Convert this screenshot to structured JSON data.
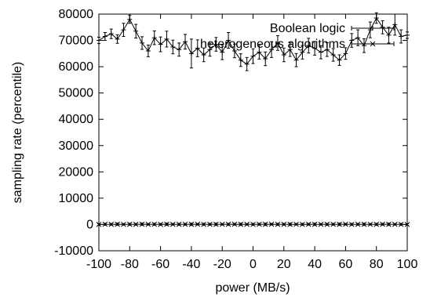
{
  "chart_data": {
    "type": "line",
    "title": "",
    "xlabel": "power (MB/s)",
    "ylabel": "sampling rate (percentile)",
    "xlim": [
      -100,
      100
    ],
    "ylim": [
      -10000,
      80000
    ],
    "xticks": [
      -100,
      -80,
      -60,
      -40,
      -20,
      0,
      20,
      40,
      60,
      80,
      100
    ],
    "yticks": [
      -10000,
      0,
      10000,
      20000,
      30000,
      40000,
      50000,
      60000,
      70000,
      80000
    ],
    "grid": false,
    "legend": "top-right",
    "series": [
      {
        "name": "Boolean logic",
        "color": "#000000",
        "style": "line-with-errorbars",
        "x": [
          -100,
          -96,
          -92,
          -88,
          -84,
          -80,
          -76,
          -72,
          -68,
          -64,
          -60,
          -56,
          -52,
          -48,
          -44,
          -40,
          -36,
          -32,
          -28,
          -24,
          -20,
          -16,
          -12,
          -8,
          -4,
          0,
          4,
          8,
          12,
          16,
          20,
          24,
          28,
          32,
          36,
          40,
          44,
          48,
          52,
          56,
          60,
          64,
          68,
          72,
          76,
          80,
          84,
          88,
          92,
          96,
          100
        ],
        "y": [
          70000,
          71500,
          72500,
          70500,
          74000,
          78000,
          73500,
          69000,
          66000,
          71000,
          68500,
          70500,
          67500,
          66500,
          69500,
          65000,
          67000,
          64500,
          66500,
          68500,
          65500,
          70000,
          66000,
          62500,
          61000,
          64000,
          65500,
          63000,
          66500,
          69000,
          64500,
          66500,
          62500,
          65500,
          68000,
          67000,
          65500,
          66500,
          64500,
          62500,
          65000,
          70000,
          71000,
          68000,
          74000,
          78500,
          75000,
          72000,
          76000,
          71500,
          72000
        ],
        "yerr": [
          1200,
          1500,
          1800,
          1600,
          2500,
          1500,
          2600,
          2400,
          2200,
          2600,
          2800,
          3000,
          2600,
          2500,
          2800,
          5500,
          3200,
          2600,
          2500,
          2600,
          2800,
          3000,
          2600,
          2400,
          2500,
          2800,
          2600,
          2600,
          3000,
          2800,
          2600,
          2600,
          2500,
          2600,
          2800,
          2600,
          2500,
          2600,
          2400,
          2000,
          2200,
          2600,
          3000,
          2600,
          3000,
          2000,
          2500,
          3000,
          4000,
          2500,
          1200
        ]
      },
      {
        "name": "heterogeneous algorithms",
        "color": "#000000",
        "style": "line-with-errorbars",
        "x": [
          -100,
          -96,
          -92,
          -88,
          -84,
          -80,
          -76,
          -72,
          -68,
          -64,
          -60,
          -56,
          -52,
          -48,
          -44,
          -40,
          -36,
          -32,
          -28,
          -24,
          -20,
          -16,
          -12,
          -8,
          -4,
          0,
          4,
          8,
          12,
          16,
          20,
          24,
          28,
          32,
          36,
          40,
          44,
          48,
          52,
          56,
          60,
          64,
          68,
          72,
          76,
          80,
          84,
          88,
          92,
          96,
          100
        ],
        "y": [
          0,
          80,
          60,
          90,
          40,
          70,
          50,
          90,
          60,
          80,
          30,
          90,
          70,
          50,
          80,
          60,
          90,
          40,
          70,
          60,
          80,
          50,
          90,
          60,
          70,
          40,
          80,
          60,
          90,
          50,
          70,
          60,
          80,
          40,
          90,
          60,
          70,
          50,
          80,
          60,
          90,
          40,
          70,
          60,
          80,
          50,
          90,
          60,
          70,
          40,
          0
        ],
        "yerr": [
          300,
          400,
          350,
          450,
          300,
          400,
          350,
          450,
          300,
          400,
          350,
          450,
          300,
          400,
          350,
          450,
          300,
          400,
          350,
          450,
          300,
          400,
          350,
          450,
          300,
          400,
          350,
          450,
          300,
          400,
          350,
          450,
          300,
          400,
          350,
          450,
          300,
          400,
          350,
          450,
          300,
          400,
          350,
          450,
          300,
          400,
          350,
          450,
          300,
          400,
          300
        ]
      }
    ]
  }
}
